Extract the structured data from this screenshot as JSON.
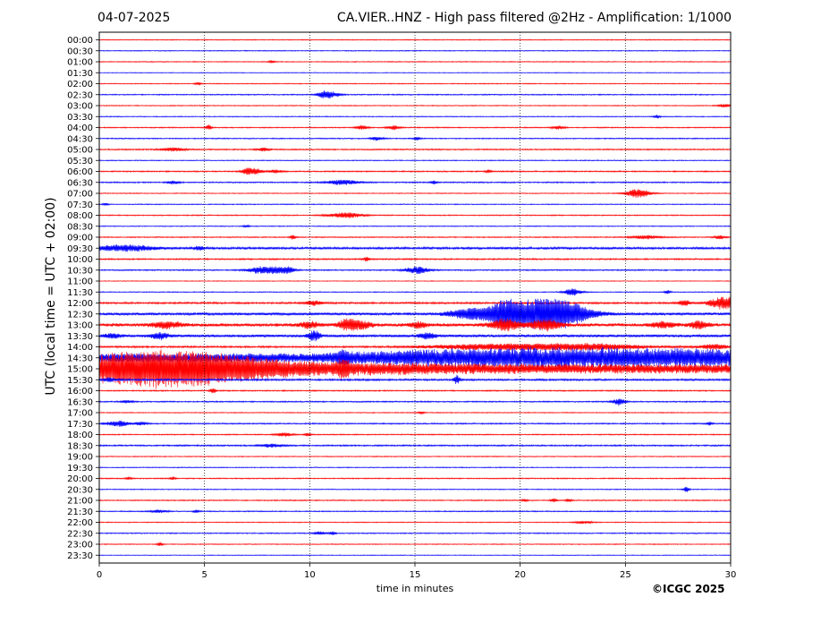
{
  "header": {
    "date": "04-07-2025",
    "title": "CA.VIER..HNZ - High pass filtered @2Hz - Amplification: 1/1000"
  },
  "copyright": "©ICGC 2025",
  "colors": {
    "red": "#ff0000",
    "blue": "#0000ff",
    "grid": "#000000"
  },
  "chart_data": {
    "type": "line",
    "title": "CA.VIER..HNZ - High pass filtered @2Hz - Amplification: 1/1000",
    "xlabel": "time in minutes",
    "ylabel": "UTC (local time = UTC + 02:00)",
    "xlim": [
      0,
      30
    ],
    "x_ticks": [
      "0",
      "5",
      "10",
      "15",
      "20",
      "25",
      "30"
    ],
    "grid": "vertical dotted at 5-minute ticks",
    "rows": [
      {
        "label": "00:00",
        "color": "red",
        "noise": 0.5,
        "events": []
      },
      {
        "label": "00:30",
        "color": "blue",
        "noise": 0.5,
        "events": []
      },
      {
        "label": "01:00",
        "color": "red",
        "noise": 0.5,
        "events": [
          [
            8.2,
            1.5,
            0.1
          ]
        ]
      },
      {
        "label": "01:30",
        "color": "blue",
        "noise": 0.4,
        "events": []
      },
      {
        "label": "02:00",
        "color": "red",
        "noise": 0.5,
        "events": [
          [
            4.7,
            1.5,
            0.1
          ]
        ]
      },
      {
        "label": "02:30",
        "color": "blue",
        "noise": 0.6,
        "events": [
          [
            10.6,
            2.5,
            0.2
          ],
          [
            11.0,
            3.5,
            0.3
          ]
        ]
      },
      {
        "label": "03:00",
        "color": "red",
        "noise": 0.5,
        "events": [
          [
            29.7,
            2,
            0.2
          ]
        ]
      },
      {
        "label": "03:30",
        "color": "blue",
        "noise": 0.5,
        "events": [
          [
            26.5,
            2,
            0.1
          ]
        ]
      },
      {
        "label": "04:00",
        "color": "red",
        "noise": 0.6,
        "events": [
          [
            5.2,
            3,
            0.1
          ],
          [
            12.5,
            2.5,
            0.2
          ],
          [
            14.0,
            2.5,
            0.2
          ],
          [
            21.8,
            2,
            0.2
          ]
        ]
      },
      {
        "label": "04:30",
        "color": "blue",
        "noise": 0.6,
        "events": [
          [
            13.2,
            2,
            0.2
          ],
          [
            15.1,
            2,
            0.1
          ]
        ]
      },
      {
        "label": "05:00",
        "color": "red",
        "noise": 0.7,
        "events": [
          [
            3.5,
            2,
            0.4
          ],
          [
            7.8,
            2,
            0.2
          ]
        ]
      },
      {
        "label": "05:30",
        "color": "blue",
        "noise": 0.5,
        "events": []
      },
      {
        "label": "06:00",
        "color": "red",
        "noise": 0.7,
        "events": [
          [
            7.0,
            2.5,
            0.2
          ],
          [
            7.4,
            3,
            0.3
          ],
          [
            8.4,
            2,
            0.2
          ],
          [
            18.5,
            2,
            0.1
          ]
        ]
      },
      {
        "label": "06:30",
        "color": "blue",
        "noise": 0.7,
        "events": [
          [
            3.5,
            2,
            0.2
          ],
          [
            11.6,
            3,
            0.5
          ],
          [
            15.9,
            2,
            0.1
          ]
        ]
      },
      {
        "label": "07:00",
        "color": "red",
        "noise": 0.5,
        "events": [
          [
            25.6,
            5,
            0.4
          ]
        ]
      },
      {
        "label": "07:30",
        "color": "blue",
        "noise": 0.5,
        "events": [
          [
            0.3,
            1.5,
            0.1
          ]
        ]
      },
      {
        "label": "08:00",
        "color": "red",
        "noise": 0.6,
        "events": [
          [
            11.7,
            3,
            0.6
          ]
        ]
      },
      {
        "label": "08:30",
        "color": "blue",
        "noise": 0.5,
        "events": [
          [
            7.0,
            1.5,
            0.1
          ]
        ]
      },
      {
        "label": "09:00",
        "color": "red",
        "noise": 0.6,
        "events": [
          [
            9.2,
            2.5,
            0.1
          ],
          [
            26.0,
            2,
            0.5
          ],
          [
            29.5,
            2,
            0.2
          ]
        ]
      },
      {
        "label": "09:30",
        "color": "blue",
        "noise": 1.2,
        "events": [
          [
            1.2,
            3.5,
            1.0
          ],
          [
            4.7,
            2,
            0.2
          ]
        ]
      },
      {
        "label": "10:00",
        "color": "red",
        "noise": 0.8,
        "events": [
          [
            12.7,
            2.5,
            0.1
          ]
        ]
      },
      {
        "label": "10:30",
        "color": "blue",
        "noise": 0.7,
        "events": [
          [
            7.6,
            3.5,
            0.4
          ],
          [
            8.4,
            3.5,
            0.4
          ],
          [
            9.0,
            3,
            0.2
          ],
          [
            15.1,
            4,
            0.4
          ]
        ]
      },
      {
        "label": "11:00",
        "color": "red",
        "noise": 0.4,
        "events": []
      },
      {
        "label": "11:30",
        "color": "blue",
        "noise": 0.5,
        "events": [
          [
            22.5,
            4,
            0.3
          ],
          [
            27.0,
            2,
            0.1
          ]
        ]
      },
      {
        "label": "12:00",
        "color": "red",
        "noise": 1.0,
        "events": [
          [
            10.2,
            2.5,
            0.3
          ],
          [
            27.8,
            3,
            0.2
          ],
          [
            29.7,
            7,
            0.5
          ]
        ]
      },
      {
        "label": "12:30",
        "color": "blue",
        "noise": 1.5,
        "events": [
          [
            17.1,
            3,
            0.5
          ],
          [
            17.8,
            4,
            0.4
          ],
          [
            19.2,
            10,
            0.6
          ],
          [
            20.5,
            6,
            1.5
          ],
          [
            21.3,
            11,
            1.2
          ],
          [
            22.2,
            5,
            0.8
          ]
        ]
      },
      {
        "label": "13:00",
        "color": "red",
        "noise": 1.8,
        "events": [
          [
            3.2,
            3.5,
            0.5
          ],
          [
            10.0,
            3.5,
            0.3
          ],
          [
            11.8,
            6,
            0.3
          ],
          [
            12.4,
            4,
            0.4
          ],
          [
            15.2,
            3,
            0.3
          ],
          [
            19.3,
            6,
            0.5
          ],
          [
            21.2,
            6,
            0.5
          ],
          [
            26.8,
            3,
            0.4
          ],
          [
            28.5,
            4,
            0.3
          ]
        ]
      },
      {
        "label": "13:30",
        "color": "blue",
        "noise": 1.5,
        "events": [
          [
            0.6,
            2.5,
            0.3
          ],
          [
            2.9,
            3.5,
            0.3
          ],
          [
            10.2,
            6,
            0.2
          ],
          [
            15.6,
            3,
            0.3
          ]
        ]
      },
      {
        "label": "14:00",
        "color": "red",
        "noise": 1.0,
        "events": [
          [
            18.5,
            3,
            2.0
          ],
          [
            23.0,
            3.5,
            2.0
          ],
          [
            29.2,
            2.5,
            0.5
          ]
        ]
      },
      {
        "label": "14:30",
        "color": "blue",
        "noise": 3.0,
        "events": [
          [
            11.6,
            5,
            0.2
          ]
        ],
        "ramp": [
          [
            0,
            2.5
          ],
          [
            10,
            2.5
          ],
          [
            13,
            5
          ],
          [
            16,
            8
          ],
          [
            22,
            10
          ],
          [
            30,
            8
          ]
        ]
      },
      {
        "label": "15:00",
        "color": "red",
        "noise": 3.0,
        "events": [
          [
            3.5,
            9,
            3.0
          ],
          [
            11.6,
            6,
            0.2
          ]
        ],
        "ramp": [
          [
            0,
            11
          ],
          [
            3,
            12
          ],
          [
            6,
            10
          ],
          [
            9,
            6
          ],
          [
            14,
            4.5
          ],
          [
            20,
            3
          ],
          [
            30,
            2.5
          ]
        ]
      },
      {
        "label": "15:30",
        "color": "blue",
        "noise": 1.0,
        "events": [
          [
            0.5,
            2.5,
            0.2
          ],
          [
            17.0,
            5,
            0.1
          ]
        ]
      },
      {
        "label": "16:00",
        "color": "red",
        "noise": 0.7,
        "events": [
          [
            5.4,
            3,
            0.1
          ]
        ]
      },
      {
        "label": "16:30",
        "color": "blue",
        "noise": 0.7,
        "events": [
          [
            1.3,
            1.5,
            0.2
          ],
          [
            24.7,
            4,
            0.2
          ]
        ]
      },
      {
        "label": "17:00",
        "color": "red",
        "noise": 0.5,
        "events": [
          [
            15.3,
            1.5,
            0.1
          ]
        ]
      },
      {
        "label": "17:30",
        "color": "blue",
        "noise": 0.7,
        "events": [
          [
            0.9,
            3,
            0.4
          ],
          [
            2.0,
            2,
            0.2
          ],
          [
            29.0,
            2,
            0.1
          ]
        ]
      },
      {
        "label": "18:00",
        "color": "red",
        "noise": 0.6,
        "events": [
          [
            8.8,
            2,
            0.3
          ],
          [
            9.9,
            2,
            0.1
          ]
        ]
      },
      {
        "label": "18:30",
        "color": "blue",
        "noise": 0.8,
        "events": [
          [
            8.2,
            2,
            0.4
          ]
        ]
      },
      {
        "label": "19:00",
        "color": "red",
        "noise": 0.5,
        "events": []
      },
      {
        "label": "19:30",
        "color": "blue",
        "noise": 0.5,
        "events": []
      },
      {
        "label": "20:00",
        "color": "red",
        "noise": 0.6,
        "events": [
          [
            1.4,
            1.5,
            0.1
          ],
          [
            3.5,
            2,
            0.1
          ]
        ]
      },
      {
        "label": "20:30",
        "color": "blue",
        "noise": 0.5,
        "events": [
          [
            27.9,
            3,
            0.1
          ]
        ]
      },
      {
        "label": "21:00",
        "color": "red",
        "noise": 0.6,
        "events": [
          [
            20.2,
            1.5,
            0.1
          ],
          [
            21.6,
            2,
            0.1
          ],
          [
            22.3,
            2,
            0.1
          ]
        ]
      },
      {
        "label": "21:30",
        "color": "blue",
        "noise": 0.6,
        "events": [
          [
            2.8,
            1.5,
            0.3
          ],
          [
            4.6,
            1.5,
            0.1
          ]
        ]
      },
      {
        "label": "22:00",
        "color": "red",
        "noise": 0.5,
        "events": [
          [
            23.0,
            1.5,
            0.3
          ]
        ]
      },
      {
        "label": "22:30",
        "color": "blue",
        "noise": 0.6,
        "events": [
          [
            10.5,
            2,
            0.2
          ],
          [
            11.1,
            2,
            0.1
          ]
        ]
      },
      {
        "label": "23:00",
        "color": "red",
        "noise": 0.5,
        "events": [
          [
            2.9,
            2,
            0.1
          ]
        ]
      },
      {
        "label": "23:30",
        "color": "blue",
        "noise": 0.4,
        "events": []
      }
    ]
  }
}
